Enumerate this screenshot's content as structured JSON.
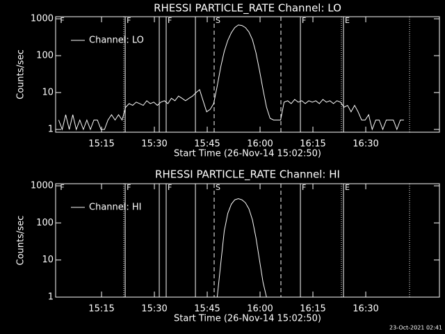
{
  "chart_data": [
    {
      "type": "line",
      "title": "RHESSI PARTICLE_RATE Channel: LO",
      "xlabel": "Start Time (26-Nov-14 15:02:50)",
      "ylabel": "Counts/sec",
      "x": [
        0,
        60,
        120,
        180,
        240,
        300,
        360,
        420,
        480,
        540,
        600,
        660,
        720,
        780,
        840,
        900,
        960,
        1020,
        1080,
        1140,
        1200,
        1260,
        1320,
        1380,
        1440,
        1500,
        1560,
        1620,
        1680,
        1740,
        1800,
        1860,
        1920,
        1980,
        2040,
        2100,
        2160,
        2220,
        2280,
        2340,
        2400,
        2460,
        2520,
        2580,
        2640,
        2700,
        2760,
        2820,
        2880,
        2940,
        3000,
        3060,
        3120,
        3180,
        3240,
        3300,
        3360,
        3420,
        3480,
        3540,
        3600,
        3660,
        3720,
        3780,
        3840,
        3900,
        3960,
        4020,
        4080,
        4140,
        4200,
        4260,
        4320,
        4380,
        4440,
        4500,
        4560,
        4620,
        4680,
        4740,
        4800,
        4860,
        4920,
        4980,
        5040,
        5100,
        5160,
        5220,
        5280,
        5340,
        5400,
        5460,
        5520,
        5580,
        5640,
        5700,
        5760,
        5820,
        5880
      ],
      "series": [
        {
          "name": "Channel: LO",
          "color": "#ffffff",
          "values": [
            1.8,
            1,
            2.5,
            1,
            2.5,
            1,
            1.8,
            1,
            1.8,
            1,
            1.8,
            1.8,
            1,
            1,
            1.8,
            2.5,
            1.8,
            2.5,
            1.8,
            4,
            5,
            4.5,
            5.5,
            5,
            4.5,
            6,
            5,
            5.5,
            4.5,
            5.5,
            6,
            5,
            7,
            6,
            8,
            7,
            6,
            7,
            8,
            10,
            12,
            6,
            3,
            3.5,
            5,
            15,
            50,
            130,
            260,
            420,
            580,
            680,
            660,
            580,
            440,
            270,
            120,
            40,
            12,
            4,
            2,
            1.8,
            1.8,
            1.8,
            5.5,
            6,
            5,
            6.5,
            5.5,
            6,
            5,
            6,
            5.5,
            6,
            5,
            6.5,
            5.5,
            6,
            5,
            6,
            5.5,
            4,
            4.5,
            3,
            4.5,
            3,
            1.8,
            1.8,
            2.5,
            1,
            1.8,
            1.8,
            1,
            1.8,
            1.8,
            1.8,
            1,
            1.8,
            1.8
          ]
        }
      ],
      "xlim": [
        -52,
        6485
      ],
      "xticks": [
        {
          "value": 730,
          "label": "15:15"
        },
        {
          "value": 1630,
          "label": "15:30"
        },
        {
          "value": 2530,
          "label": "15:45"
        },
        {
          "value": 3430,
          "label": "16:00"
        },
        {
          "value": 4330,
          "label": "16:15"
        },
        {
          "value": 5230,
          "label": "16:30"
        }
      ],
      "ylim": [
        0.84,
        1140
      ],
      "yticks": [
        1,
        10,
        100,
        1000
      ],
      "log_y": true,
      "legend": "upper left",
      "flags": [
        {
          "x": 0,
          "style": "none",
          "label": "F"
        },
        {
          "x": 1109,
          "style": "dotted"
        },
        {
          "x": 1133,
          "style": "solid",
          "label": "F"
        },
        {
          "x": 1713,
          "style": "solid"
        },
        {
          "x": 1831,
          "style": "solid",
          "label": "F"
        },
        {
          "x": 2329,
          "style": "solid"
        },
        {
          "x": 2648,
          "style": "dashed",
          "label": "S"
        },
        {
          "x": 3785,
          "style": "dashed"
        },
        {
          "x": 4117,
          "style": "solid",
          "label": "F"
        },
        {
          "x": 4815,
          "style": "dotted"
        },
        {
          "x": 4851,
          "style": "solid",
          "label": "E"
        },
        {
          "x": 5976,
          "style": "dotted"
        }
      ]
    },
    {
      "type": "line",
      "title": "RHESSI PARTICLE_RATE Channel: HI",
      "xlabel": "Start Time (26-Nov-14 15:02:50)",
      "ylabel": "Counts/sec",
      "x": [
        2700,
        2760,
        2820,
        2880,
        2940,
        3000,
        3060,
        3120,
        3180,
        3240,
        3300,
        3360,
        3420,
        3480,
        3540
      ],
      "series": [
        {
          "name": "Channel: HI",
          "color": "#ffffff",
          "values": [
            1,
            8,
            60,
            180,
            320,
            420,
            450,
            420,
            350,
            240,
            120,
            40,
            10,
            2.5,
            1
          ]
        }
      ],
      "xlim": [
        -52,
        6485
      ],
      "xticks": [
        {
          "value": 730,
          "label": "15:15"
        },
        {
          "value": 1630,
          "label": "15:30"
        },
        {
          "value": 2530,
          "label": "15:45"
        },
        {
          "value": 3430,
          "label": "16:00"
        },
        {
          "value": 4330,
          "label": "16:15"
        },
        {
          "value": 5230,
          "label": "16:30"
        }
      ],
      "ylim": [
        1,
        1140
      ],
      "yticks": [
        1,
        10,
        100,
        1000
      ],
      "log_y": true,
      "legend": "upper left",
      "flags": [
        {
          "x": 0,
          "style": "none",
          "label": "F"
        },
        {
          "x": 1109,
          "style": "dotted"
        },
        {
          "x": 1133,
          "style": "solid",
          "label": "F"
        },
        {
          "x": 1713,
          "style": "solid"
        },
        {
          "x": 1831,
          "style": "solid",
          "label": "F"
        },
        {
          "x": 2329,
          "style": "solid"
        },
        {
          "x": 2648,
          "style": "dashed",
          "label": "S"
        },
        {
          "x": 3785,
          "style": "dashed"
        },
        {
          "x": 4117,
          "style": "solid",
          "label": "F"
        },
        {
          "x": 4815,
          "style": "dotted"
        },
        {
          "x": 4851,
          "style": "solid",
          "label": "E"
        },
        {
          "x": 5976,
          "style": "dotted"
        }
      ]
    }
  ],
  "footer": "23-Oct-2021 02:41"
}
